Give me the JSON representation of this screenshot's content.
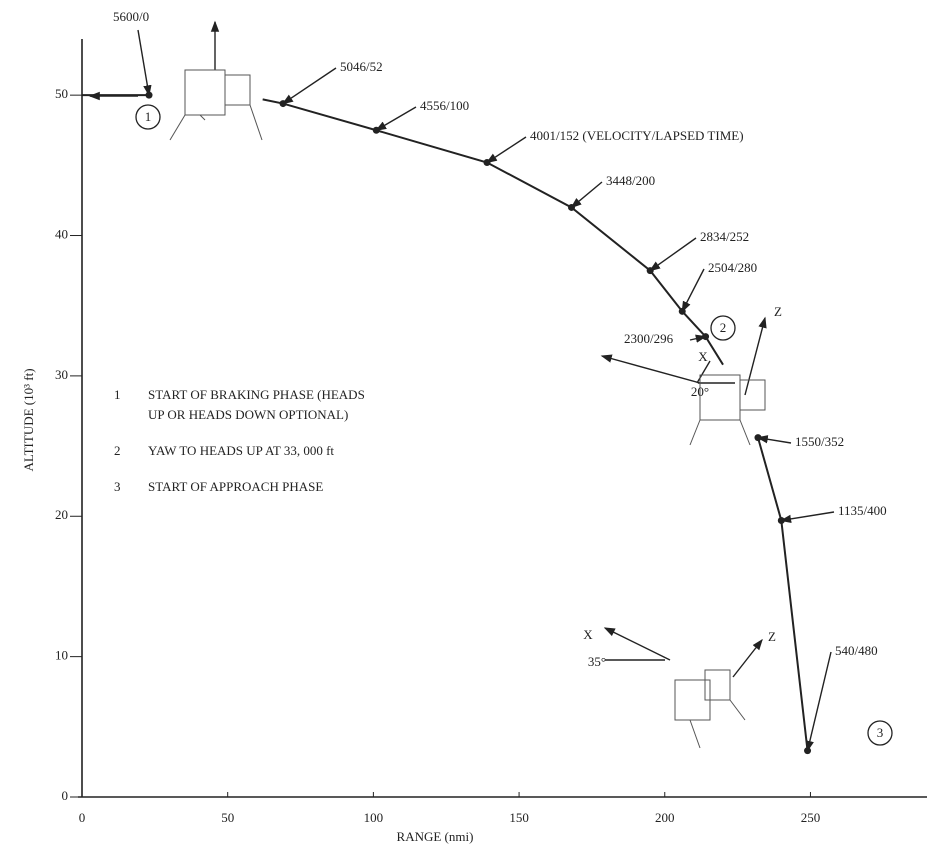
{
  "chart_data": {
    "type": "line",
    "x_label": "RANGE (nmi)",
    "y_label": "ALTITUDE (10³ ft)",
    "xlim": [
      0,
      290
    ],
    "ylim": [
      0,
      54
    ],
    "xticks": [
      0,
      50,
      100,
      150,
      200,
      250
    ],
    "yticks": [
      0,
      10,
      20,
      30,
      40,
      50
    ],
    "color": "#222222",
    "x": [
      0,
      23,
      null,
      62,
      69,
      101,
      139,
      168,
      195,
      206,
      214,
      220,
      null,
      232,
      240,
      249
    ],
    "values": [
      50,
      50,
      null,
      49.7,
      49.4,
      47.5,
      45.2,
      42,
      37.5,
      34.6,
      32.8,
      30.8,
      null,
      25.6,
      19.7,
      3.3
    ],
    "points": [
      {
        "label": "5600/0",
        "x": 23,
        "y": 50
      },
      {
        "label": "5046/52",
        "x": 69,
        "y": 49.4
      },
      {
        "label": "4556/100",
        "x": 101,
        "y": 47.5
      },
      {
        "label": "4001/152 (VELOCITY/LAPSED TIME)",
        "x": 139,
        "y": 45.2
      },
      {
        "label": "3448/200",
        "x": 168,
        "y": 42
      },
      {
        "label": "2834/252",
        "x": 195,
        "y": 37.5
      },
      {
        "label": "2504/280",
        "x": 206,
        "y": 34.6
      },
      {
        "label": "2300/296",
        "x": 214,
        "y": 32.8
      },
      {
        "label": "1550/352",
        "x": 232,
        "y": 25.6
      },
      {
        "label": "1135/400",
        "x": 240,
        "y": 19.7
      },
      {
        "label": "540/480",
        "x": 249,
        "y": 3.3
      }
    ],
    "markers": [
      "1",
      "2",
      "3"
    ],
    "frame_labels": [
      "X",
      "20°",
      "Z",
      "X",
      "35°",
      "Z"
    ],
    "notes": [
      {
        "number": "1",
        "lines": [
          "START OF BRAKING PHASE (HEADS",
          "UP OR HEADS DOWN OPTIONAL)"
        ]
      },
      {
        "number": "2",
        "lines": [
          "YAW TO HEADS UP AT 33, 000 ft"
        ]
      },
      {
        "number": "3",
        "lines": [
          "START OF APPROACH PHASE"
        ]
      }
    ]
  }
}
